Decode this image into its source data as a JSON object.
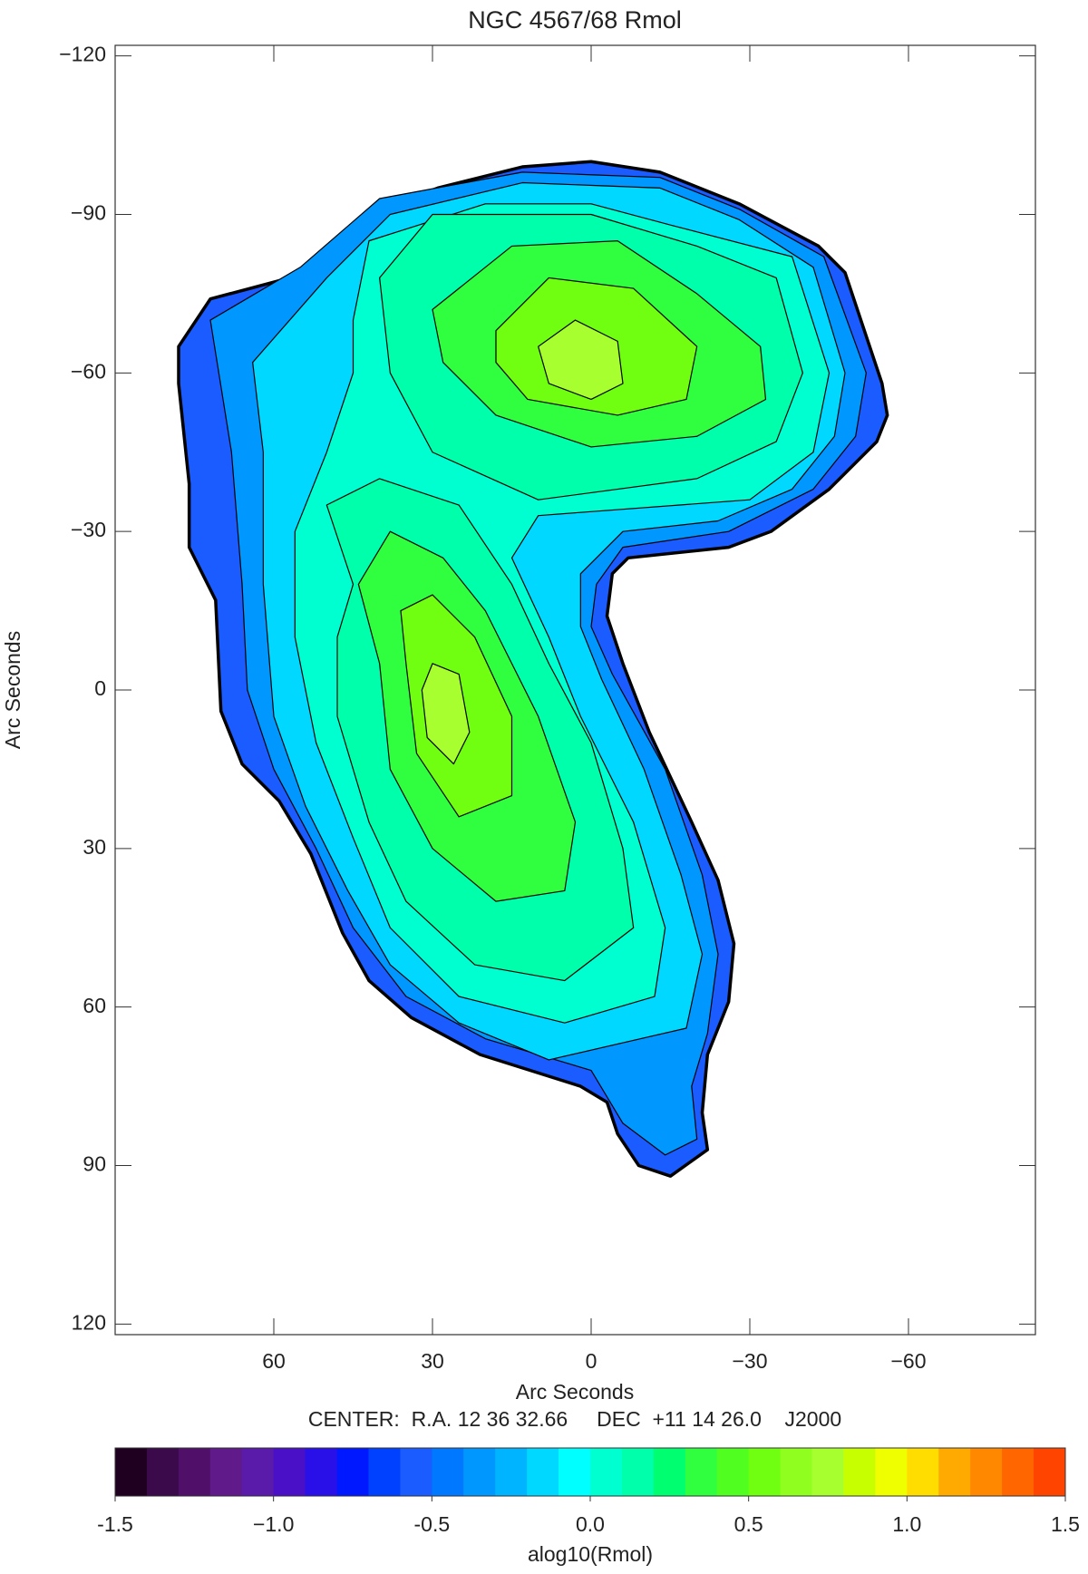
{
  "chart_data": {
    "type": "contour",
    "title": "NGC 4567/68 Rmol",
    "xlabel": "Arc Seconds",
    "ylabel": "Arc Seconds",
    "annotation": "CENTER:  R.A. 12 36 32.66     DEC  +11 14 26.0    J2000",
    "xlim": [
      90,
      -84
    ],
    "ylim": [
      -122,
      122
    ],
    "xticks": [
      60,
      30,
      0,
      {
        "value": -30,
        "label": "−30"
      },
      {
        "value": -60,
        "label": "−60"
      }
    ],
    "yticks": [
      {
        "value": -120,
        "label": "−120"
      },
      {
        "value": -90,
        "label": "−90"
      },
      {
        "value": -60,
        "label": "−60"
      },
      {
        "value": -30,
        "label": "−30"
      },
      0,
      30,
      60,
      90,
      120
    ],
    "contours": [
      {
        "level": -0.6,
        "x": [
          78,
          72,
          57,
          49,
          42,
          29,
          13,
          0,
          -13,
          -28,
          -43,
          -48,
          -51,
          -55,
          -56,
          -54,
          -45,
          -34,
          -26,
          -7,
          -4,
          -3,
          -6,
          -11,
          -19,
          -24,
          -27,
          -26,
          -22,
          -21,
          -22,
          -15,
          -9,
          -5,
          -3,
          2,
          21,
          34,
          42,
          47,
          53,
          59,
          66,
          70,
          71,
          76,
          76,
          78
        ],
        "y": [
          -65,
          -74,
          -78,
          -83,
          -90,
          -95,
          -99,
          -100,
          -98,
          -92,
          -84,
          -79,
          -70,
          -58,
          -52,
          -47,
          -38,
          -30,
          -27,
          -25,
          -22,
          -14,
          -5,
          8,
          25,
          36,
          48,
          59,
          69,
          80,
          87,
          92,
          90,
          84,
          78,
          75,
          69,
          62,
          55,
          46,
          31,
          21,
          14,
          4,
          -17,
          -27,
          -39,
          -58
        ]
      },
      {
        "level": -0.4,
        "x": [
          72,
          55,
          40,
          13,
          -13,
          -28,
          -44,
          -52,
          -50,
          -42,
          -26,
          -6,
          -1,
          0,
          -4,
          -14,
          -21,
          -24,
          -22,
          -19,
          -20,
          -14,
          -6,
          0,
          20,
          35,
          45,
          52,
          60,
          65,
          66,
          68
        ],
        "y": [
          -70,
          -80,
          -93,
          -98,
          -97,
          -91,
          -82,
          -60,
          -48,
          -38,
          -30,
          -27,
          -20,
          -12,
          -3,
          15,
          35,
          50,
          65,
          75,
          85,
          88,
          82,
          72,
          66,
          58,
          45,
          30,
          15,
          0,
          -20,
          -45
        ]
      },
      {
        "level": -0.2,
        "x": [
          64,
          50,
          38,
          13,
          -13,
          -28,
          -42,
          -48,
          -46,
          -38,
          -24,
          -6,
          2,
          2,
          -2,
          -10,
          -17,
          -21,
          -18,
          8,
          25,
          38,
          46,
          54,
          60,
          62,
          62
        ],
        "y": [
          -62,
          -78,
          -90,
          -96,
          -95,
          -89,
          -80,
          -60,
          -48,
          -38,
          -32,
          -30,
          -22,
          -12,
          -2,
          15,
          35,
          50,
          64,
          70,
          63,
          52,
          38,
          22,
          5,
          -20,
          -45
        ]
      },
      {
        "level": 0.0,
        "x": [
          45,
          42,
          20,
          0,
          -15,
          -38,
          -45,
          -42,
          -30,
          10,
          15,
          8,
          2,
          -8,
          -14,
          -12,
          5,
          25,
          38,
          45,
          52,
          56,
          56,
          50,
          45
        ],
        "y": [
          -70,
          -85,
          -92,
          -92,
          -88,
          -82,
          -60,
          -45,
          -36,
          -33,
          -25,
          -10,
          5,
          25,
          45,
          58,
          63,
          58,
          45,
          28,
          10,
          -10,
          -30,
          -45,
          -60
        ]
      },
      {
        "level": 0.1,
        "x": [
          40,
          30,
          0,
          -20,
          -35,
          -40,
          -35,
          -20,
          10,
          30,
          38
        ],
        "y": [
          -78,
          -90,
          -90,
          -84,
          -78,
          -60,
          -47,
          -40,
          -36,
          -45,
          -60
        ]
      },
      {
        "level": 0.1,
        "x": [
          45,
          50,
          40,
          25,
          15,
          8,
          0,
          -6,
          -8,
          5,
          22,
          35,
          42,
          48,
          48
        ],
        "y": [
          -20,
          -35,
          -40,
          -35,
          -20,
          -5,
          10,
          30,
          45,
          55,
          52,
          40,
          25,
          5,
          -10
        ]
      },
      {
        "level": 0.3,
        "x": [
          30,
          15,
          -5,
          -20,
          -32,
          -33,
          -20,
          0,
          18,
          28
        ],
        "y": [
          -72,
          -84,
          -85,
          -75,
          -65,
          -55,
          -48,
          -46,
          -52,
          -62
        ]
      },
      {
        "level": 0.3,
        "x": [
          40,
          44,
          38,
          28,
          20,
          10,
          3,
          5,
          18,
          30,
          38
        ],
        "y": [
          -5,
          -20,
          -30,
          -25,
          -15,
          5,
          25,
          38,
          40,
          30,
          15
        ]
      },
      {
        "level": 0.5,
        "x": [
          18,
          8,
          -8,
          -20,
          -18,
          -5,
          12,
          18
        ],
        "y": [
          -68,
          -78,
          -76,
          -65,
          -55,
          -52,
          -55,
          -62
        ]
      },
      {
        "level": 0.5,
        "x": [
          35,
          36,
          30,
          22,
          15,
          15,
          25,
          33
        ],
        "y": [
          -5,
          -15,
          -18,
          -10,
          5,
          20,
          24,
          12
        ]
      },
      {
        "level": 0.7,
        "x": [
          10,
          3,
          -5,
          -6,
          0,
          8
        ],
        "y": [
          -65,
          -70,
          -66,
          -58,
          -55,
          -58
        ]
      },
      {
        "level": 0.7,
        "x": [
          32,
          30,
          25,
          23,
          26,
          31
        ],
        "y": [
          0,
          -5,
          -3,
          8,
          14,
          9
        ]
      }
    ],
    "colorbar": {
      "label": "alog10(Rmol)",
      "lim": [
        -1.5,
        1.5
      ],
      "ticks": [
        -1.5,
        {
          "value": -1,
          "label": "−1.0"
        },
        -0.5,
        {
          "value": 0,
          "label": "0.0"
        },
        0.5,
        {
          "value": 1,
          "label": "1.0"
        },
        1.5
      ],
      "colors": [
        "#200020",
        "#3a0a4a",
        "#50106a",
        "#601a8a",
        "#5a1aaa",
        "#4a10c8",
        "#2a10e8",
        "#0018ff",
        "#0040ff",
        "#1a5cff",
        "#0078ff",
        "#0098ff",
        "#00b4ff",
        "#00d8ff",
        "#00ffff",
        "#00ffd0",
        "#00ffaa",
        "#00ff70",
        "#30ff40",
        "#50ff20",
        "#70ff10",
        "#90ff20",
        "#a8ff30",
        "#c8ff00",
        "#f0ff00",
        "#ffdd00",
        "#ffaa00",
        "#ff8800",
        "#ff6600",
        "#ff4400"
      ]
    }
  }
}
